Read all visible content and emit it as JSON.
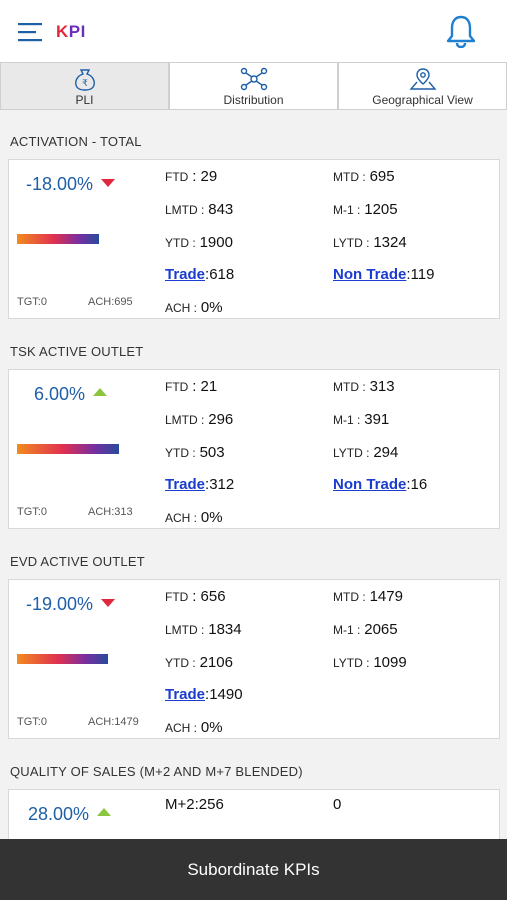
{
  "header": {
    "title_k": "K",
    "title_rest": "PI",
    "menu_icon": "menu-icon",
    "bell_icon": "bell-icon"
  },
  "tabs": [
    {
      "label": "PLI",
      "icon": "money-bag-icon",
      "active": true
    },
    {
      "label": "Distribution",
      "icon": "network-icon",
      "active": false
    },
    {
      "label": "Geographical View",
      "icon": "map-pin-icon",
      "active": false
    }
  ],
  "sections": [
    {
      "title": "ACTIVATION - TOTAL",
      "percent": "-18.00%",
      "trend": "down",
      "tgt": "TGT:0",
      "ach_label": "ACH:",
      "ach_value": "695",
      "ftd_label": "FTD",
      "ftd_value": ": 29",
      "mtd_label": "MTD :",
      "mtd_value": "695",
      "lmtd_label": "LMTD :",
      "lmtd_value": "843",
      "m1_label": "M-1 :",
      "m1_value": "1205",
      "ytd_label": "YTD :",
      "ytd_value": "1900",
      "lytd_label": "LYTD :",
      "lytd_value": "1324",
      "trade_label": "Trade",
      "trade_value": ":618",
      "nontrade_label": "Non Trade",
      "nontrade_value": ":119",
      "achp_label": "ACH :",
      "achp_value": "0%"
    },
    {
      "title": "TSK ACTIVE OUTLET",
      "percent": "6.00%",
      "trend": "up",
      "tgt": "TGT:0",
      "ach_label": "ACH:",
      "ach_value": "313",
      "ftd_label": "FTD",
      "ftd_value": ": 21",
      "mtd_label": "MTD :",
      "mtd_value": "313",
      "lmtd_label": "LMTD :",
      "lmtd_value": "296",
      "m1_label": "M-1 :",
      "m1_value": "391",
      "ytd_label": "YTD :",
      "ytd_value": "503",
      "lytd_label": "LYTD :",
      "lytd_value": "294",
      "trade_label": "Trade",
      "trade_value": ":312",
      "nontrade_label": "Non Trade",
      "nontrade_value": ":16",
      "achp_label": "ACH :",
      "achp_value": "0%"
    },
    {
      "title": "EVD ACTIVE OUTLET",
      "percent": "-19.00%",
      "trend": "down",
      "tgt": "TGT:0",
      "ach_label": "ACH:",
      "ach_value": "1479",
      "ftd_label": "FTD",
      "ftd_value": ": 656",
      "mtd_label": "MTD :",
      "mtd_value": "1479",
      "lmtd_label": "LMTD :",
      "lmtd_value": "1834",
      "m1_label": "M-1 :",
      "m1_value": "2065",
      "ytd_label": "YTD :",
      "ytd_value": "2106",
      "lytd_label": "LYTD :",
      "lytd_value": "1099",
      "trade_label": "Trade",
      "trade_value": ":1490",
      "achp_label": "ACH :",
      "achp_value": "0%"
    },
    {
      "title": "QUALITY OF SALES (M+2 AND M+7 BLENDED)",
      "percent": "28.00%",
      "trend": "up",
      "m2": "M+2:256",
      "m7": "0"
    }
  ],
  "bottom": {
    "label": "Subordinate KPIs"
  },
  "colors": {
    "brand_red": "#e0283c",
    "brand_purple": "#6a2fb8",
    "link_blue": "#1a3ccf",
    "percent_blue": "#1f5fa8",
    "up_green": "#8cc63f"
  }
}
